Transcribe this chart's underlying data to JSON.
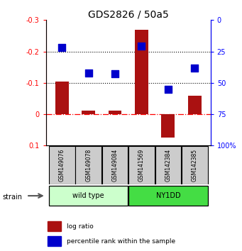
{
  "title": "GDS2826 / 50a5",
  "samples": [
    "GSM149076",
    "GSM149078",
    "GSM149084",
    "GSM141569",
    "GSM142384",
    "GSM142385"
  ],
  "log_ratios": [
    -0.105,
    -0.012,
    -0.012,
    -0.27,
    0.075,
    -0.06
  ],
  "percentile_ranks": [
    22,
    42,
    43,
    21,
    55,
    38
  ],
  "ymin": -0.3,
  "ymax": 0.1,
  "yticks_left": [
    0.1,
    0.0,
    -0.1,
    -0.2,
    -0.3
  ],
  "ytick_labels_left": [
    "0.1",
    "0",
    "-0.1",
    "-0.2",
    "-0.3"
  ],
  "yticks_right": [
    100,
    75,
    50,
    25,
    0
  ],
  "ytick_labels_right": [
    "100%",
    "75",
    "50",
    "25",
    "0"
  ],
  "bar_color": "#aa1111",
  "dot_color": "#0000cc",
  "wild_type_label": "wild type",
  "ny1dd_label": "NY1DD",
  "strain_label": "strain",
  "legend_log_ratio": "log ratio",
  "legend_percentile": "percentile rank within the sample",
  "wt_color": "#ccffcc",
  "ny1dd_color": "#44dd44",
  "sample_box_color": "#cccccc",
  "title_fontsize": 10,
  "bar_width": 0.5,
  "dot_size": 55,
  "n_wt": 3,
  "n_ny": 3
}
